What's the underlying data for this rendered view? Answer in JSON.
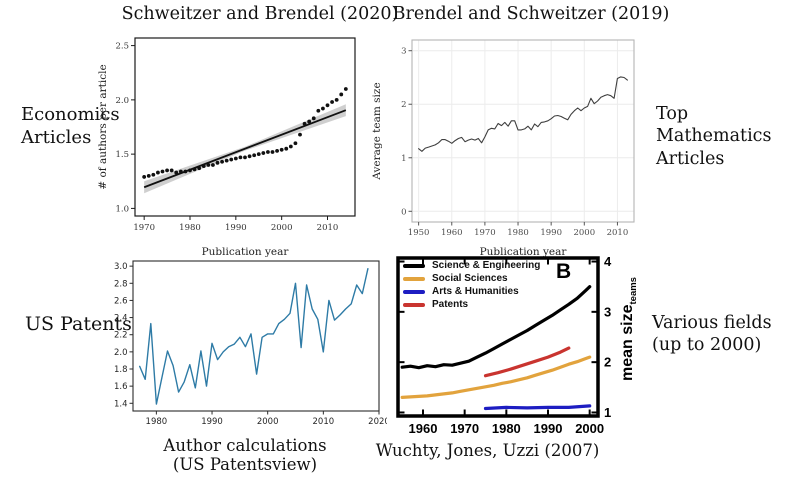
{
  "titles": {
    "left": "Schweitzer and Brendel (2020)",
    "right": "Brendel and Schweitzer (2019)"
  },
  "side_labels": {
    "econ": "Economics\nArticles",
    "math": "Top Mathematics\nArticles",
    "patents": "US Patents",
    "fields": "Various fields\n(up to 2000)"
  },
  "captions": {
    "patents_line1": "Author calculations",
    "patents_line2": "(US Patentsview)",
    "wuchty": "Wuchty, Jones, Uzzi (2007)"
  },
  "chart_data": [
    {
      "type": "scatter",
      "title": "Schweitzer and Brendel (2020)",
      "xlabel": "Publication year",
      "ylabel": "# of authors per article",
      "xlim": [
        1968,
        2016
      ],
      "ylim": [
        0.93,
        2.57
      ],
      "xticks": [
        1970,
        1980,
        1990,
        2000,
        2010
      ],
      "yticks": [
        1.0,
        1.5,
        2.0,
        2.5
      ],
      "ytick_labels": [
        "1.0",
        "1.5",
        "2.0",
        "2.5"
      ],
      "x": [
        1970,
        1971,
        1972,
        1973,
        1974,
        1975,
        1976,
        1977,
        1978,
        1979,
        1980,
        1981,
        1982,
        1983,
        1984,
        1985,
        1986,
        1987,
        1988,
        1989,
        1990,
        1991,
        1992,
        1993,
        1994,
        1995,
        1996,
        1997,
        1998,
        1999,
        2000,
        2001,
        2002,
        2003,
        2004,
        2005,
        2006,
        2007,
        2008,
        2009,
        2010,
        2011,
        2012,
        2013,
        2014
      ],
      "y": [
        1.29,
        1.3,
        1.31,
        1.33,
        1.34,
        1.35,
        1.35,
        1.33,
        1.34,
        1.34,
        1.35,
        1.36,
        1.37,
        1.39,
        1.4,
        1.4,
        1.42,
        1.43,
        1.44,
        1.45,
        1.46,
        1.47,
        1.47,
        1.48,
        1.49,
        1.5,
        1.51,
        1.52,
        1.52,
        1.53,
        1.54,
        1.55,
        1.57,
        1.6,
        1.68,
        1.78,
        1.8,
        1.83,
        1.9,
        1.92,
        1.95,
        1.98,
        2.0,
        2.05,
        2.1
      ],
      "trend": {
        "x": [
          1970,
          2014
        ],
        "y": [
          1.195,
          1.905
        ],
        "band_end": 0.055,
        "band_mid": 0.018
      },
      "point_color": "#111111",
      "line_color": "#111111",
      "band_color": "rgba(130,130,130,0.38)"
    },
    {
      "type": "line",
      "title": "Brendel and Schweitzer (2019)",
      "xlabel": "Publication year",
      "ylabel": "Average team size",
      "xlim": [
        1948,
        2015
      ],
      "ylim": [
        -0.2,
        3.2
      ],
      "xticks": [
        1950,
        1960,
        1970,
        1980,
        1990,
        2000,
        2010
      ],
      "yticks": [
        0,
        1,
        2,
        3
      ],
      "ytick_labels": [
        "0",
        "1",
        "2",
        "3"
      ],
      "grid": true,
      "x": [
        1950,
        1951,
        1952,
        1953,
        1954,
        1955,
        1956,
        1957,
        1958,
        1959,
        1960,
        1961,
        1962,
        1963,
        1964,
        1965,
        1966,
        1967,
        1968,
        1969,
        1970,
        1971,
        1972,
        1973,
        1974,
        1975,
        1976,
        1977,
        1978,
        1979,
        1980,
        1981,
        1982,
        1983,
        1984,
        1985,
        1986,
        1987,
        1988,
        1989,
        1990,
        1991,
        1992,
        1993,
        1994,
        1995,
        1996,
        1997,
        1998,
        1999,
        2000,
        2001,
        2002,
        2003,
        2004,
        2005,
        2006,
        2007,
        2008,
        2009,
        2010,
        2011,
        2012,
        2013
      ],
      "y": [
        1.17,
        1.12,
        1.18,
        1.2,
        1.22,
        1.24,
        1.28,
        1.34,
        1.34,
        1.31,
        1.27,
        1.32,
        1.36,
        1.38,
        1.3,
        1.33,
        1.35,
        1.33,
        1.36,
        1.28,
        1.39,
        1.52,
        1.55,
        1.54,
        1.64,
        1.6,
        1.66,
        1.59,
        1.69,
        1.69,
        1.52,
        1.52,
        1.54,
        1.59,
        1.52,
        1.63,
        1.58,
        1.66,
        1.67,
        1.69,
        1.73,
        1.78,
        1.79,
        1.77,
        1.74,
        1.71,
        1.81,
        1.88,
        1.93,
        1.88,
        1.93,
        1.96,
        2.11,
        2.01,
        2.06,
        2.13,
        2.16,
        2.18,
        2.16,
        2.11,
        2.48,
        2.51,
        2.5,
        2.45
      ],
      "line_color": "#3f3f3f"
    },
    {
      "type": "line",
      "title": "US Patents — Author calculations (US Patentsview)",
      "xlabel": "",
      "ylabel": "",
      "xlim": [
        1975.8,
        2020
      ],
      "ylim": [
        1.31,
        3.06
      ],
      "xticks": [
        1980,
        1990,
        2000,
        2010,
        2020
      ],
      "yticks": [
        1.4,
        1.6,
        1.8,
        2.0,
        2.2,
        2.4,
        2.6,
        2.8,
        3.0
      ],
      "ytick_labels": [
        "1.4",
        "1.6",
        "1.8",
        "2.0",
        "2.2",
        "2.4",
        "2.6",
        "2.8",
        "3.0"
      ],
      "x": [
        1977,
        1978,
        1979,
        1980,
        1981,
        1982,
        1983,
        1984,
        1985,
        1986,
        1987,
        1988,
        1989,
        1990,
        1991,
        1992,
        1993,
        1994,
        1995,
        1996,
        1997,
        1998,
        1999,
        2000,
        2001,
        2002,
        2003,
        2004,
        2005,
        2006,
        2007,
        2008,
        2009,
        2010,
        2011,
        2012,
        2013,
        2014,
        2015,
        2016,
        2017,
        2018
      ],
      "y": [
        1.83,
        1.68,
        2.33,
        1.39,
        1.7,
        2.01,
        1.84,
        1.53,
        1.65,
        1.85,
        1.58,
        2.01,
        1.6,
        2.1,
        1.91,
        2.0,
        2.06,
        2.09,
        2.17,
        2.06,
        2.21,
        1.74,
        2.17,
        2.21,
        2.21,
        2.33,
        2.38,
        2.45,
        2.8,
        2.05,
        2.78,
        2.5,
        2.38,
        2.0,
        2.6,
        2.37,
        2.43,
        2.5,
        2.56,
        2.78,
        2.68,
        2.97
      ],
      "line_color": "#2e7ba6"
    },
    {
      "type": "multiline",
      "title": "Wuchty, Jones, Uzzi (2007) — panel B",
      "panel_label": "B",
      "ylabel_right": "mean size",
      "ylabel_right_sub": "teams",
      "xlim": [
        1954,
        2002
      ],
      "ylim": [
        0.93,
        4.07
      ],
      "xticks": [
        1960,
        1970,
        1980,
        1990,
        2000
      ],
      "yticks": [
        1,
        2,
        3,
        4
      ],
      "ytick_labels": [
        "1",
        "2",
        "3",
        "4"
      ],
      "series": [
        {
          "name": "Science & Engineering",
          "color": "#000000",
          "x": [
            1955,
            1957,
            1959,
            1961,
            1963,
            1965,
            1967,
            1969,
            1971,
            1973,
            1975,
            1977,
            1979,
            1981,
            1983,
            1985,
            1987,
            1989,
            1991,
            1993,
            1995,
            1997,
            1999,
            2000
          ],
          "y": [
            1.9,
            1.92,
            1.89,
            1.93,
            1.91,
            1.95,
            1.94,
            1.98,
            2.02,
            2.1,
            2.18,
            2.27,
            2.36,
            2.45,
            2.54,
            2.63,
            2.73,
            2.83,
            2.93,
            3.04,
            3.15,
            3.27,
            3.42,
            3.5
          ]
        },
        {
          "name": "Social Sciences",
          "color": "#e2a33d",
          "x": [
            1955,
            1957,
            1959,
            1961,
            1963,
            1965,
            1967,
            1969,
            1971,
            1973,
            1975,
            1977,
            1979,
            1981,
            1983,
            1985,
            1987,
            1989,
            1991,
            1993,
            1995,
            1997,
            1999,
            2000
          ],
          "y": [
            1.3,
            1.31,
            1.32,
            1.33,
            1.35,
            1.37,
            1.39,
            1.42,
            1.45,
            1.48,
            1.51,
            1.54,
            1.58,
            1.61,
            1.65,
            1.69,
            1.74,
            1.79,
            1.84,
            1.9,
            1.96,
            2.01,
            2.07,
            2.1
          ]
        },
        {
          "name": "Arts & Humanities",
          "color": "#1d1dc2",
          "x": [
            1975,
            1980,
            1985,
            1990,
            1995,
            2000
          ],
          "y": [
            1.08,
            1.1,
            1.09,
            1.1,
            1.1,
            1.13
          ]
        },
        {
          "name": "Patents",
          "color": "#c9342f",
          "x": [
            1975,
            1978,
            1981,
            1984,
            1987,
            1990,
            1993,
            1995
          ],
          "y": [
            1.73,
            1.79,
            1.86,
            1.94,
            2.02,
            2.1,
            2.2,
            2.28
          ]
        }
      ]
    }
  ]
}
